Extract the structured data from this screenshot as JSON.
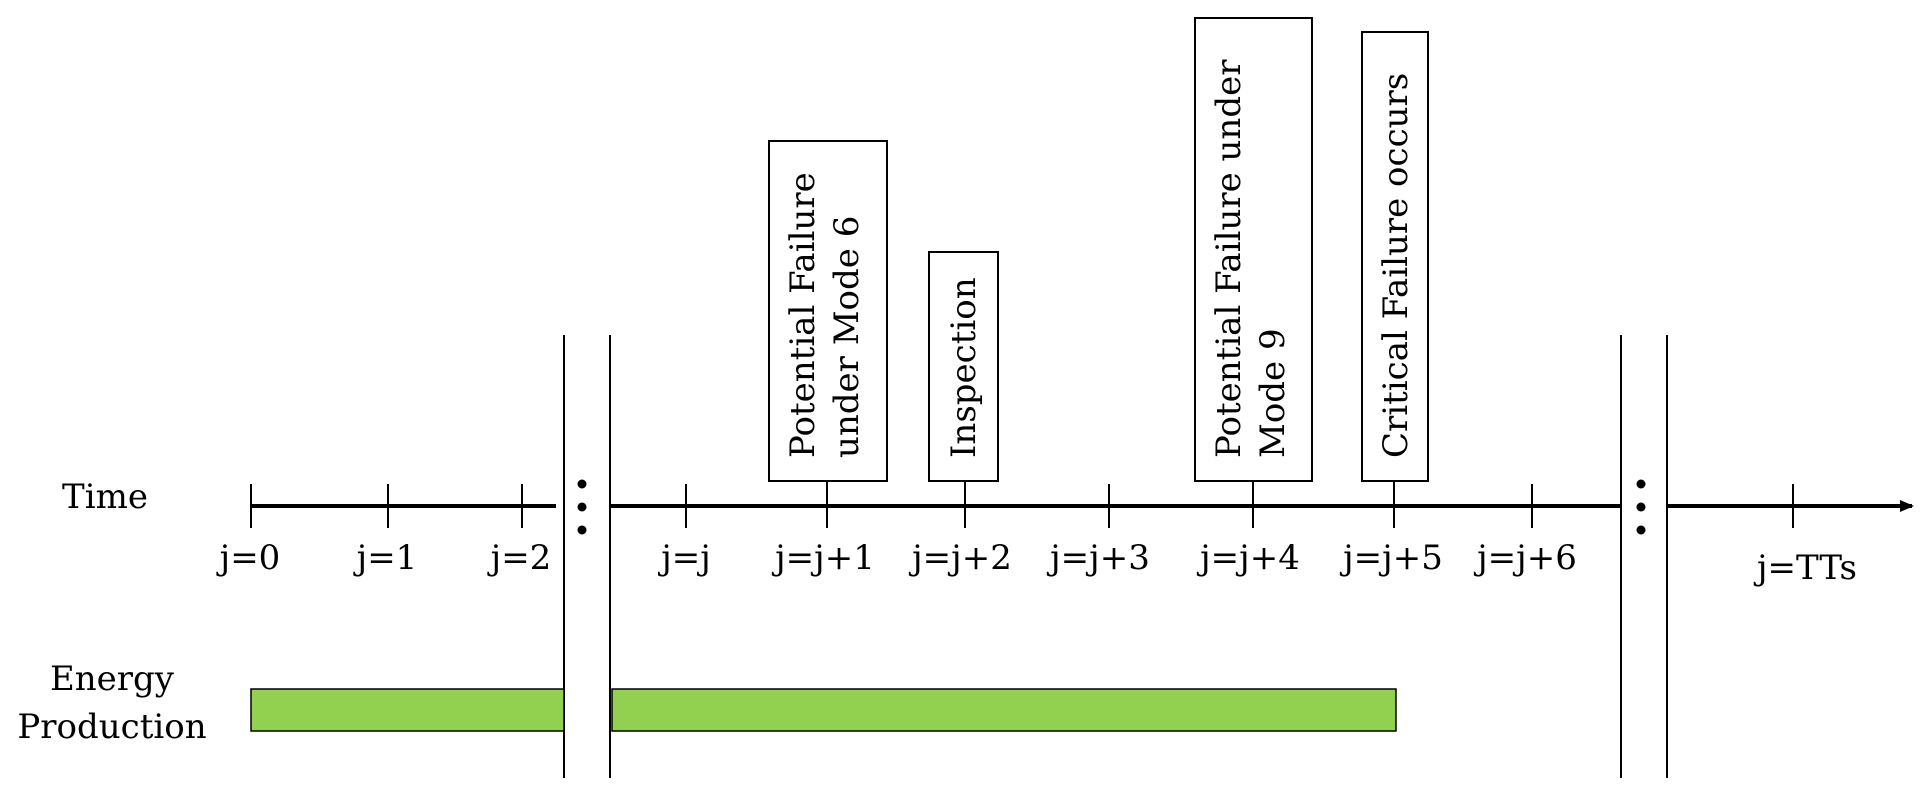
{
  "timeline": {
    "row_label": "Time",
    "ticks": [
      "j=0",
      "j=1",
      "j=2",
      "j=j",
      "j=j+1",
      "j=j+2",
      "j=j+3",
      "j=j+4",
      "j=j+5",
      "j=j+6",
      "j=TTs"
    ]
  },
  "events": {
    "potential_failure_6": {
      "line1": "Potential Failure",
      "line2": "under Mode 6"
    },
    "inspection": {
      "line1": "Inspection"
    },
    "potential_failure_9": {
      "line1": "Potential Failure under",
      "line2": "Mode 9"
    },
    "critical_failure": {
      "line1": "Critical Failure occurs"
    }
  },
  "energy": {
    "label_line1": "Energy",
    "label_line2": "Production",
    "bar_color": "#92d050"
  }
}
